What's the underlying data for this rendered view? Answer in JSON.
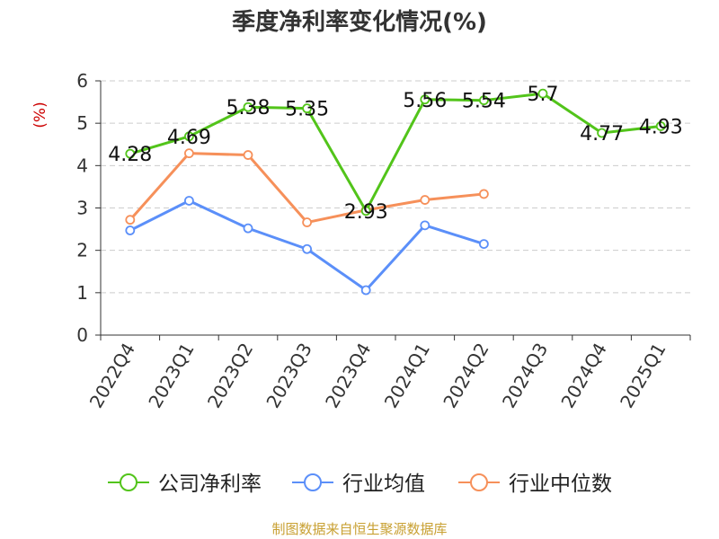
{
  "chart_data": {
    "type": "line",
    "title": "季度净利率变化情况(%)",
    "ylabel": "(%)",
    "xlabel": "",
    "ylim": [
      0,
      6
    ],
    "yticks": [
      0,
      1,
      2,
      3,
      4,
      5,
      6
    ],
    "grid": true,
    "legend_position": "bottom",
    "categories": [
      "2022Q4",
      "2023Q1",
      "2023Q2",
      "2023Q3",
      "2023Q4",
      "2024Q1",
      "2024Q2",
      "2024Q3",
      "2024Q4",
      "2025Q1"
    ],
    "series": [
      {
        "name": "公司净利率",
        "color": "#52c41a",
        "show_labels": true,
        "values": [
          4.28,
          4.69,
          5.38,
          5.35,
          2.93,
          5.56,
          5.54,
          5.7,
          4.77,
          4.93
        ]
      },
      {
        "name": "行业均值",
        "color": "#5b8ff9",
        "show_labels": false,
        "values": [
          2.47,
          3.17,
          2.52,
          2.03,
          1.06,
          2.59,
          2.15,
          null,
          null,
          null
        ]
      },
      {
        "name": "行业中位数",
        "color": "#f6905a",
        "show_labels": false,
        "values": [
          2.72,
          4.29,
          4.25,
          2.66,
          2.95,
          3.19,
          3.33,
          null,
          null,
          null
        ]
      }
    ]
  },
  "footer": "制图数据来自恒生聚源数据库",
  "colors": {
    "title": "#333333",
    "axis": "#333333",
    "ylabel": "#cc0000",
    "grid": "#cccccc",
    "footer": "#c8a032"
  }
}
